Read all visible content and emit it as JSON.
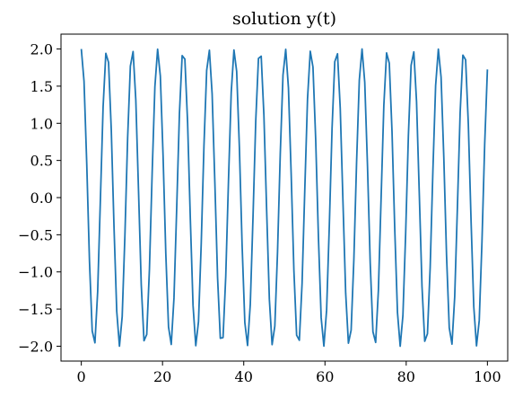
{
  "chart_data": {
    "type": "line",
    "title": "solution y(t)",
    "xlabel": "",
    "ylabel": "",
    "xlim": [
      -5,
      105
    ],
    "ylim": [
      -2.2,
      2.2
    ],
    "xticks": [
      0,
      20,
      40,
      60,
      80,
      100
    ],
    "yticks": [
      2.0,
      1.5,
      1.0,
      0.5,
      0.0,
      -0.5,
      -1.0,
      -1.5,
      -2.0
    ],
    "xtick_labels": [
      "0",
      "20",
      "40",
      "60",
      "80",
      "100"
    ],
    "ytick_labels": [
      "2.0",
      "1.5",
      "1.0",
      "0.5",
      "0.0",
      "−0.5",
      "−1.0",
      "−1.5",
      "−2.0"
    ],
    "grid": false,
    "series": [
      {
        "color": "#1f77b4",
        "function": "2*cos(t)",
        "t_range": [
          0,
          100
        ],
        "samples": 150
      }
    ]
  }
}
